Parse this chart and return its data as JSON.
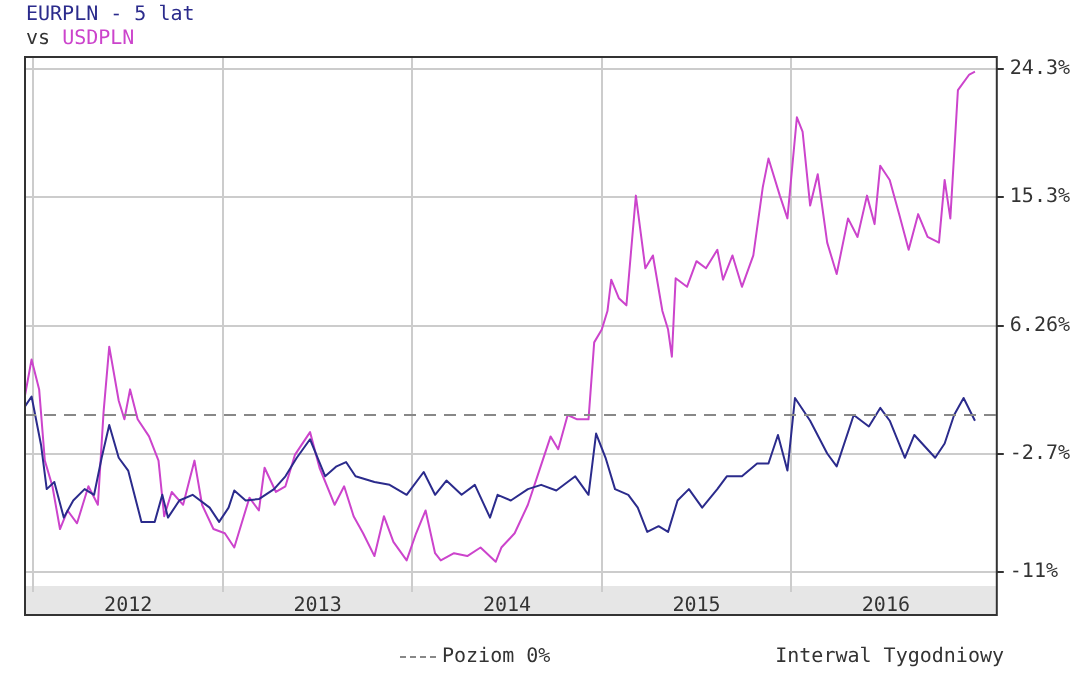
{
  "chart_data": {
    "type": "line",
    "title": "EURPLN - 5 lat",
    "subtitle": "vs USDPLN",
    "annotations": [
      "Interwal Tygodniowy"
    ],
    "xlim": [
      2011.95,
      2017.08
    ],
    "xticks": [
      {
        "value": 2012,
        "label": null
      },
      {
        "value": 2012.5,
        "label": "2012"
      },
      {
        "value": 2013,
        "label": null
      },
      {
        "value": 2013.5,
        "label": "2013"
      },
      {
        "value": 2014,
        "label": null
      },
      {
        "value": 2014.5,
        "label": "2014"
      },
      {
        "value": 2015,
        "label": null
      },
      {
        "value": 2015.5,
        "label": "2015"
      },
      {
        "value": 2016,
        "label": null
      },
      {
        "value": 2016.5,
        "label": "2016"
      }
    ],
    "ylim": [
      -12,
      25.2
    ],
    "yticks": [
      {
        "value": -11,
        "label": "-11%"
      },
      {
        "value": -2.7,
        "label": "-2.7%"
      },
      {
        "value": 6.26,
        "label": "6.26%"
      },
      {
        "value": 15.3,
        "label": "15.3%"
      },
      {
        "value": 24.3,
        "label": "24.3%"
      }
    ],
    "grid": true,
    "legend": "bottom",
    "marker": "none",
    "line_style": "solid",
    "ref_lines": [
      {
        "axis": "y",
        "value": 0,
        "label": "Poziom 0%",
        "color": "#888888",
        "line_style": "dashed"
      }
    ],
    "series": [
      {
        "color": "#2b2b8c",
        "x": [
          2011.95,
          2011.99,
          2012.04,
          2012.07,
          2012.11,
          2012.16,
          2012.21,
          2012.27,
          2012.32,
          2012.36,
          2012.4,
          2012.45,
          2012.5,
          2012.57,
          2012.64,
          2012.68,
          2012.71,
          2012.77,
          2012.84,
          2012.93,
          2012.98,
          2013.03,
          2013.06,
          2013.12,
          2013.19,
          2013.27,
          2013.33,
          2013.39,
          2013.46,
          2013.5,
          2013.54,
          2013.6,
          2013.65,
          2013.7,
          2013.8,
          2013.88,
          2013.97,
          2014.06,
          2014.12,
          2014.18,
          2014.26,
          2014.33,
          2014.41,
          2014.45,
          2014.52,
          2014.61,
          2014.68,
          2014.76,
          2014.86,
          2014.93,
          2014.97,
          2015.02,
          2015.07,
          2015.14,
          2015.19,
          2015.24,
          2015.3,
          2015.35,
          2015.4,
          2015.46,
          2015.53,
          2015.61,
          2015.66,
          2015.74,
          2015.82,
          2015.88,
          2015.93,
          2015.98,
          2016.02,
          2016.1,
          2016.19,
          2016.24,
          2016.33,
          2016.41,
          2016.47,
          2016.52,
          2016.6,
          2016.65,
          2016.76,
          2016.81,
          2016.86,
          2016.91,
          2016.97
        ],
        "values": [
          0.5,
          1.3,
          -2.1,
          -5.2,
          -4.7,
          -7.2,
          -6.0,
          -5.2,
          -5.6,
          -3.0,
          -0.7,
          -3.0,
          -3.9,
          -7.5,
          -7.5,
          -5.6,
          -7.2,
          -6.0,
          -5.6,
          -6.5,
          -7.5,
          -6.5,
          -5.3,
          -6.0,
          -5.9,
          -5.2,
          -4.3,
          -3.0,
          -1.7,
          -3.0,
          -4.3,
          -3.6,
          -3.3,
          -4.3,
          -4.7,
          -4.9,
          -5.6,
          -4.0,
          -5.6,
          -4.6,
          -5.6,
          -4.9,
          -7.2,
          -5.6,
          -6.0,
          -5.2,
          -4.9,
          -5.3,
          -4.3,
          -5.6,
          -1.3,
          -3.0,
          -5.2,
          -5.6,
          -6.5,
          -8.2,
          -7.8,
          -8.2,
          -6.0,
          -5.2,
          -6.5,
          -5.2,
          -4.3,
          -4.3,
          -3.4,
          -3.4,
          -1.4,
          -3.9,
          1.2,
          -0.4,
          -2.7,
          -3.6,
          0.0,
          -0.8,
          0.5,
          -0.4,
          -3.0,
          -1.4,
          -3.0,
          -2.0,
          0.0,
          1.2,
          -0.4
        ]
      },
      {
        "color": "#cc44cc",
        "x": [
          2011.95,
          2011.99,
          2012.03,
          2012.06,
          2012.1,
          2012.14,
          2012.18,
          2012.23,
          2012.29,
          2012.34,
          2012.37,
          2012.4,
          2012.45,
          2012.48,
          2012.51,
          2012.55,
          2012.61,
          2012.66,
          2012.69,
          2012.73,
          2012.79,
          2012.85,
          2012.89,
          2012.95,
          2013.01,
          2013.06,
          2013.14,
          2013.19,
          2013.22,
          2013.28,
          2013.33,
          2013.38,
          2013.46,
          2013.51,
          2013.59,
          2013.64,
          2013.69,
          2013.74,
          2013.8,
          2013.85,
          2013.9,
          2013.97,
          2014.02,
          2014.07,
          2014.12,
          2014.15,
          2014.22,
          2014.29,
          2014.36,
          2014.44,
          2014.47,
          2014.54,
          2014.61,
          2014.67,
          2014.73,
          2014.77,
          2014.82,
          2014.87,
          2014.93,
          2014.96,
          2015.0,
          2015.03,
          2015.05,
          2015.09,
          2015.13,
          2015.18,
          2015.23,
          2015.27,
          2015.32,
          2015.35,
          2015.37,
          2015.39,
          2015.45,
          2015.5,
          2015.55,
          2015.61,
          2015.64,
          2015.69,
          2015.74,
          2015.8,
          2015.85,
          2015.88,
          2015.94,
          2015.98,
          2016.03,
          2016.06,
          2016.1,
          2016.14,
          2016.19,
          2016.24,
          2016.3,
          2016.35,
          2016.4,
          2016.44,
          2016.47,
          2016.52,
          2016.57,
          2016.62,
          2016.67,
          2016.72,
          2016.78,
          2016.81,
          2016.84,
          2016.88,
          2016.94,
          2016.97
        ],
        "values": [
          1.0,
          3.9,
          1.8,
          -3.2,
          -5.0,
          -8.0,
          -6.7,
          -7.6,
          -5.0,
          -6.3,
          0.2,
          4.8,
          1.0,
          -0.3,
          1.8,
          -0.3,
          -1.5,
          -3.2,
          -7.1,
          -5.4,
          -6.3,
          -3.2,
          -6.3,
          -8.0,
          -8.3,
          -9.3,
          -5.8,
          -6.7,
          -3.7,
          -5.4,
          -5.0,
          -2.8,
          -1.2,
          -3.7,
          -6.3,
          -5.0,
          -7.1,
          -8.3,
          -9.9,
          -7.1,
          -8.9,
          -10.2,
          -8.3,
          -6.7,
          -9.7,
          -10.2,
          -9.7,
          -9.9,
          -9.3,
          -10.3,
          -9.3,
          -8.3,
          -6.3,
          -3.9,
          -1.5,
          -2.4,
          0.0,
          -0.3,
          -0.3,
          5.1,
          6.0,
          7.3,
          9.5,
          8.2,
          7.7,
          15.4,
          10.3,
          11.2,
          7.3,
          6.0,
          4.1,
          9.6,
          9.0,
          10.8,
          10.3,
          11.6,
          9.5,
          11.2,
          9.0,
          11.2,
          16.0,
          18.0,
          15.4,
          13.8,
          20.9,
          19.9,
          14.7,
          16.9,
          12.1,
          9.9,
          13.8,
          12.5,
          15.4,
          13.4,
          17.5,
          16.5,
          14.1,
          11.6,
          14.1,
          12.5,
          12.1,
          16.5,
          13.8,
          22.8,
          23.9,
          24.1
        ]
      }
    ]
  }
}
